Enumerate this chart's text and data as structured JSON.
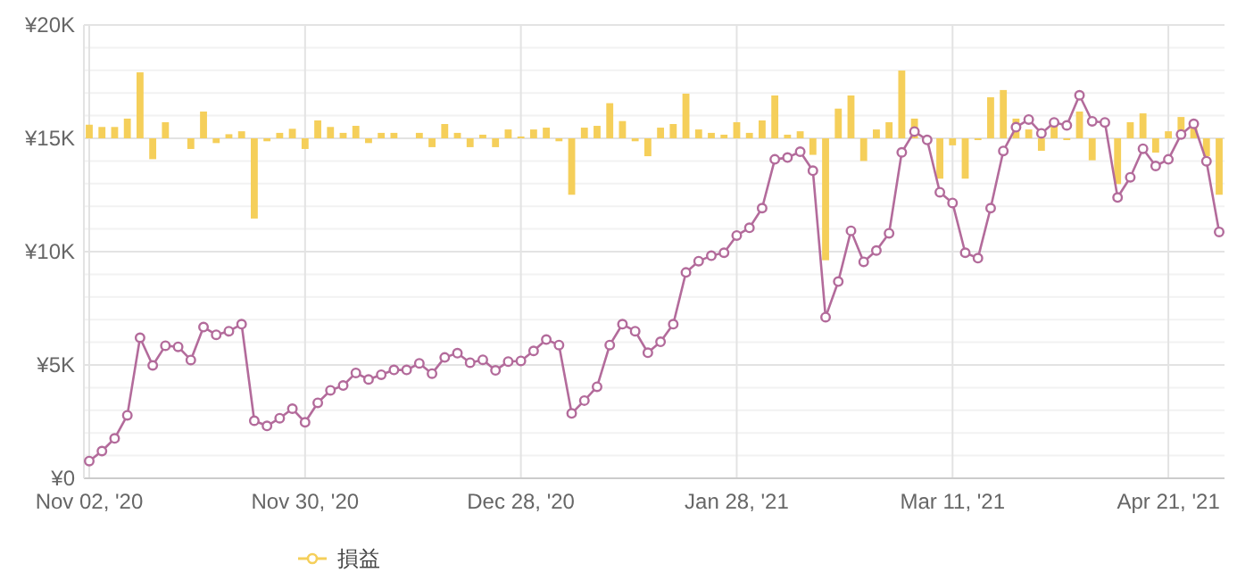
{
  "chart_data": {
    "type": "bar",
    "categories": [
      "Nov 02, '20",
      null,
      null,
      null,
      null,
      null,
      null,
      null,
      null,
      null,
      null,
      null,
      null,
      null,
      null,
      null,
      null,
      "Nov 30, '20",
      null,
      null,
      null,
      null,
      null,
      null,
      null,
      null,
      null,
      null,
      null,
      null,
      null,
      null,
      null,
      null,
      "Dec 28, '20",
      null,
      null,
      null,
      null,
      null,
      null,
      null,
      null,
      null,
      null,
      null,
      null,
      null,
      null,
      null,
      null,
      "Jan 28, '21",
      null,
      null,
      null,
      null,
      null,
      null,
      null,
      null,
      null,
      null,
      null,
      null,
      null,
      null,
      null,
      null,
      "Mar 11, '21",
      null,
      null,
      null,
      null,
      null,
      null,
      null,
      null,
      null,
      null,
      null,
      null,
      null,
      null,
      null,
      null,
      "Apr 21, '21",
      null,
      null,
      null,
      null
    ],
    "series": [
      {
        "name": "損益",
        "color": "#f5cf5a",
        "base": [
          15000,
          15000,
          15000,
          15000,
          15000,
          15000,
          15000,
          15000,
          15000,
          15000,
          15000,
          15000,
          15000,
          15000,
          15000,
          15000,
          15000,
          15000,
          15000,
          15000,
          15000,
          15000,
          15000,
          15000,
          15000,
          15000,
          15000,
          15000,
          15000,
          15000,
          15000,
          15000,
          15000,
          15000,
          15000,
          15000,
          15000,
          15000,
          15000,
          15000,
          15000,
          15000,
          15000,
          15000,
          15000,
          15000,
          15000,
          15000,
          15000,
          15000,
          15000,
          15000,
          15000,
          15000,
          15000,
          15000,
          15000,
          15000,
          15000,
          15000,
          15000,
          15000,
          15000,
          15000,
          15000,
          15000,
          15000,
          15000,
          15000,
          15000,
          15000,
          15000,
          15000,
          15000,
          15000,
          15000,
          15000,
          15000,
          15000,
          15000,
          15000,
          15000,
          15000,
          15000,
          15000,
          15000,
          15000,
          15000,
          15000,
          15000
        ],
        "values": [
          600,
          500,
          500,
          870,
          2910,
          -920,
          710,
          0,
          -470,
          1180,
          -210,
          180,
          310,
          -3540,
          -130,
          240,
          420,
          -470,
          790,
          500,
          240,
          550,
          -210,
          240,
          240,
          0,
          240,
          -390,
          630,
          240,
          -390,
          160,
          -390,
          390,
          80,
          390,
          470,
          -130,
          -2490,
          470,
          550,
          1550,
          760,
          -130,
          -790,
          470,
          630,
          1970,
          390,
          240,
          160,
          710,
          240,
          790,
          1890,
          160,
          310,
          -730,
          -5380,
          1310,
          1890,
          -1000,
          390,
          710,
          2990,
          870,
          0,
          -1780,
          -310,
          -1780,
          -80,
          1810,
          2130,
          870,
          390,
          -550,
          550,
          -80,
          1180,
          -970,
          0,
          -2020,
          710,
          1100,
          -630,
          310,
          940,
          550,
          -790,
          -2490
        ]
      },
      {
        "type": "line",
        "color": "#b36b9b",
        "marker": "circle",
        "values": [
          760,
          1200,
          1760,
          2780,
          6200,
          4980,
          5850,
          5800,
          5220,
          6670,
          6330,
          6490,
          6800,
          2540,
          2310,
          2650,
          3070,
          2470,
          3330,
          3880,
          4090,
          4650,
          4360,
          4570,
          4780,
          4780,
          5070,
          4620,
          5330,
          5520,
          5100,
          5230,
          4760,
          5150,
          5180,
          5620,
          6120,
          5880,
          2860,
          3430,
          4040,
          5880,
          6800,
          6490,
          5540,
          6020,
          6800,
          9080,
          9580,
          9820,
          9950,
          10710,
          11050,
          11920,
          14070,
          14150,
          14410,
          13570,
          7110,
          8680,
          10920,
          9550,
          10050,
          10810,
          14380,
          15300,
          14930,
          12620,
          12150,
          9950,
          9710,
          11920,
          14440,
          15490,
          15830,
          15220,
          15700,
          15570,
          16900,
          15750,
          15700,
          12390,
          13280,
          14540,
          13780,
          14070,
          15170,
          15640,
          13990,
          10870
        ]
      }
    ],
    "ylim": [
      0,
      20000
    ],
    "yticks": [
      {
        "value": 0,
        "label": "¥0"
      },
      {
        "value": 1000,
        "label": null
      },
      {
        "value": 2000,
        "label": null
      },
      {
        "value": 3000,
        "label": null
      },
      {
        "value": 4000,
        "label": null
      },
      {
        "value": 5000,
        "label": "¥5K"
      },
      {
        "value": 6000,
        "label": null
      },
      {
        "value": 7000,
        "label": null
      },
      {
        "value": 8000,
        "label": null
      },
      {
        "value": 9000,
        "label": null
      },
      {
        "value": 10000,
        "label": "¥10K"
      },
      {
        "value": 11000,
        "label": null
      },
      {
        "value": 12000,
        "label": null
      },
      {
        "value": 13000,
        "label": null
      },
      {
        "value": 14000,
        "label": null
      },
      {
        "value": 15000,
        "label": "¥15K"
      },
      {
        "value": 16000,
        "label": null
      },
      {
        "value": 17000,
        "label": null
      },
      {
        "value": 18000,
        "label": null
      },
      {
        "value": 19000,
        "label": null
      },
      {
        "value": 20000,
        "label": "¥20K"
      }
    ],
    "grid": true,
    "legend": "bottom"
  }
}
